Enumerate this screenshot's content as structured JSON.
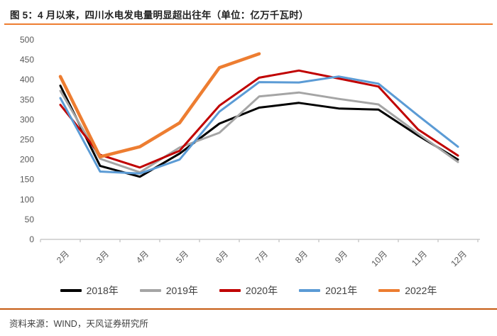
{
  "header": {
    "figure_title": "图 5：4 月以来，四川水电发电量明显超出往年（单位：亿万千瓦时）"
  },
  "footer": {
    "source_text": "资料来源：WIND，天风证券研究所"
  },
  "colors": {
    "title_text": "#222222",
    "title_underline": "#ED7D31",
    "footer_line": "#C55A11",
    "axis_line": "#BFBFBF",
    "axis_label": "#595959",
    "legend_text": "#404040"
  },
  "chart_data": {
    "type": "line",
    "title": "图 5：4 月以来，四川水电发电量明显超出往年（单位：亿万千瓦时）",
    "xlabel": "",
    "ylabel": "",
    "ylim": [
      0,
      500
    ],
    "ytick_step": 50,
    "grid": false,
    "legend_position": "bottom",
    "categories": [
      "2月",
      "3月",
      "4月",
      "5月",
      "6月",
      "7月",
      "8月",
      "9月",
      "10月",
      "11月",
      "12月"
    ],
    "series": [
      {
        "name": "2018年",
        "color": "#000000",
        "width": 3,
        "values": [
          385,
          184,
          157,
          215,
          290,
          330,
          342,
          328,
          325,
          260,
          200
        ]
      },
      {
        "name": "2019年",
        "color": "#A5A5A5",
        "width": 3,
        "values": [
          372,
          202,
          168,
          230,
          267,
          358,
          368,
          352,
          338,
          265,
          194
        ]
      },
      {
        "name": "2020年",
        "color": "#C00000",
        "width": 3,
        "values": [
          337,
          212,
          180,
          222,
          335,
          405,
          423,
          403,
          383,
          275,
          210
        ]
      },
      {
        "name": "2021年",
        "color": "#5B9BD5",
        "width": 3,
        "values": [
          354,
          170,
          165,
          200,
          320,
          394,
          393,
          408,
          390,
          310,
          232
        ]
      },
      {
        "name": "2022年",
        "color": "#ED7D31",
        "width": 4.5,
        "values": [
          408,
          207,
          232,
          292,
          430,
          465
        ]
      }
    ]
  }
}
